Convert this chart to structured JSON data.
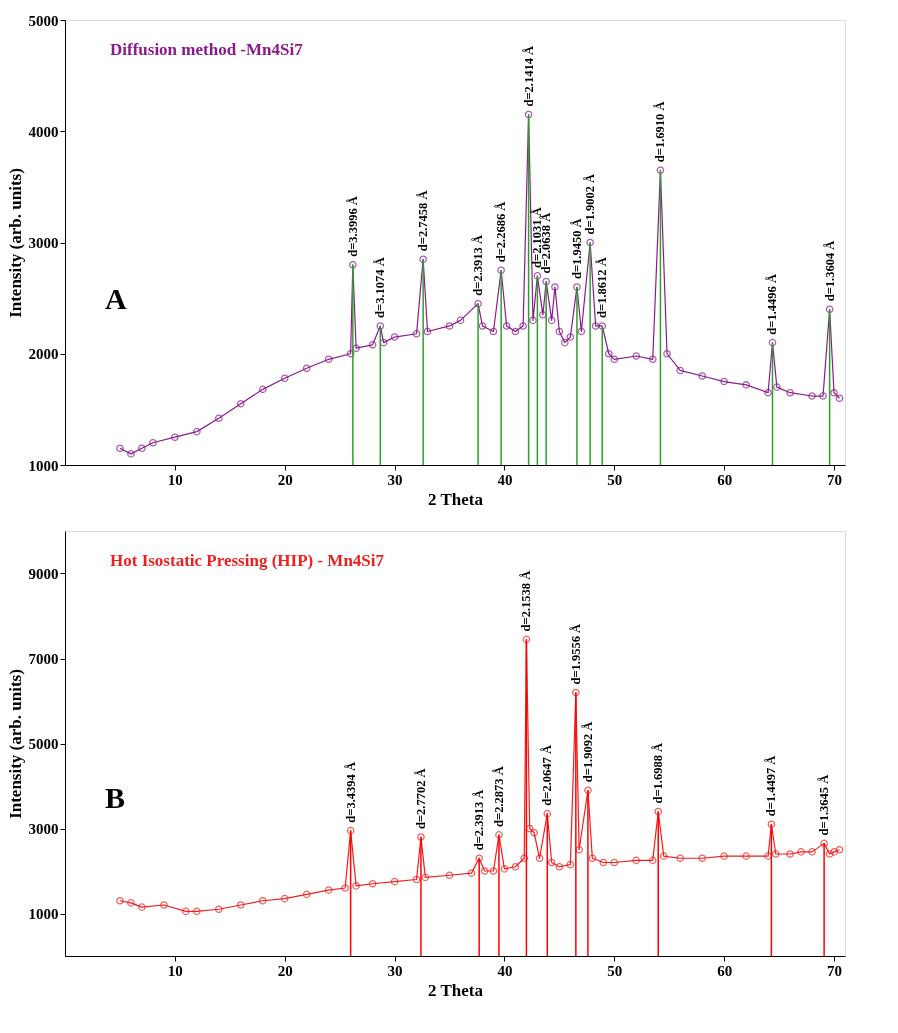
{
  "chart_data": [
    {
      "type": "line",
      "xlabel": "2 Theta",
      "ylabel": "Intensity (arb. units)",
      "xlim": [
        0,
        71
      ],
      "ylim": [
        1000,
        5000
      ],
      "xticks": [
        10,
        20,
        30,
        40,
        50,
        60,
        70
      ],
      "yticks": [
        1000,
        2000,
        3000,
        4000,
        5000
      ],
      "grid": false,
      "marker": "circle",
      "line_style": "solid",
      "annotations": [
        "A",
        {
          "text": "d=3.3996 Å",
          "x": 26.2,
          "y": 2800
        },
        {
          "text": "d=3.1074 Å",
          "x": 28.7,
          "y": 2250
        },
        {
          "text": "d=2.7458 Å",
          "x": 32.6,
          "y": 2850
        },
        {
          "text": "d=2.3913 Å",
          "x": 37.6,
          "y": 2450
        },
        {
          "text": "d=2.2686 Å",
          "x": 39.7,
          "y": 2750
        },
        {
          "text": "d=2.1414 Å",
          "x": 42.2,
          "y": 4150
        },
        {
          "text": "d=2.1031 Å",
          "x": 43.0,
          "y": 2700
        },
        {
          "text": "d=2.0638 Å",
          "x": 43.8,
          "y": 2650
        },
        {
          "text": "d=1.9450 Å",
          "x": 46.6,
          "y": 2600
        },
        {
          "text": "d=1.9002 Å",
          "x": 47.8,
          "y": 3000
        },
        {
          "text": "d=1.8612 Å",
          "x": 48.9,
          "y": 2250
        },
        {
          "text": "d=1.6910 Å",
          "x": 54.2,
          "y": 3650
        },
        {
          "text": "d=1.4496 Å",
          "x": 64.4,
          "y": 2100
        },
        {
          "text": "d=1.3604 Å",
          "x": 69.6,
          "y": 2400
        }
      ],
      "x": [
        5,
        6,
        7,
        8,
        10,
        12,
        14,
        16,
        18,
        20,
        22,
        24,
        26,
        26.2,
        26.5,
        28,
        28.7,
        29,
        30,
        32,
        32.6,
        33,
        35,
        36,
        37.6,
        38,
        39,
        39.7,
        40.2,
        41,
        41.7,
        42.2,
        42.6,
        43.0,
        43.5,
        43.8,
        44.3,
        44.6,
        45,
        45.5,
        46,
        46.6,
        47,
        47.8,
        48.3,
        48.9,
        49.5,
        50,
        52,
        53.5,
        54.2,
        54.8,
        56,
        58,
        60,
        62,
        64,
        64.4,
        64.8,
        66,
        68,
        69,
        69.6,
        70,
        70.5
      ],
      "series": [
        {
          "name": "Diffusion method -Mn4Si7",
          "color": "#8b1a8b",
          "values": [
            1150,
            1100,
            1150,
            1200,
            1250,
            1300,
            1420,
            1550,
            1680,
            1780,
            1870,
            1950,
            2000,
            2800,
            2050,
            2080,
            2250,
            2100,
            2150,
            2180,
            2850,
            2200,
            2250,
            2300,
            2450,
            2250,
            2200,
            2750,
            2250,
            2200,
            2250,
            4150,
            2300,
            2700,
            2350,
            2650,
            2300,
            2600,
            2200,
            2100,
            2150,
            2600,
            2200,
            3000,
            2250,
            2250,
            2000,
            1950,
            1980,
            1950,
            3650,
            2000,
            1850,
            1800,
            1750,
            1720,
            1650,
            2100,
            1700,
            1650,
            1620,
            1620,
            2400,
            1650,
            1600
          ]
        }
      ],
      "ref_lines": [
        {
          "axis": "x",
          "value": 26.2,
          "color": "#2ca02c"
        },
        {
          "axis": "x",
          "value": 28.7,
          "color": "#2ca02c"
        },
        {
          "axis": "x",
          "value": 32.6,
          "color": "#2ca02c"
        },
        {
          "axis": "x",
          "value": 37.6,
          "color": "#2ca02c"
        },
        {
          "axis": "x",
          "value": 39.7,
          "color": "#2ca02c"
        },
        {
          "axis": "x",
          "value": 42.2,
          "color": "#2ca02c"
        },
        {
          "axis": "x",
          "value": 43.0,
          "color": "#2ca02c"
        },
        {
          "axis": "x",
          "value": 43.8,
          "color": "#2ca02c"
        },
        {
          "axis": "x",
          "value": 46.6,
          "color": "#2ca02c"
        },
        {
          "axis": "x",
          "value": 47.8,
          "color": "#2ca02c"
        },
        {
          "axis": "x",
          "value": 48.9,
          "color": "#2ca02c"
        },
        {
          "axis": "x",
          "value": 54.2,
          "color": "#2ca02c"
        },
        {
          "axis": "x",
          "value": 64.4,
          "color": "#2ca02c"
        },
        {
          "axis": "x",
          "value": 69.6,
          "color": "#2ca02c"
        }
      ]
    },
    {
      "type": "line",
      "xlabel": "2 Theta",
      "ylabel": "Intensity (arb. units)",
      "xlim": [
        0,
        71
      ],
      "ylim": [
        0,
        10000
      ],
      "xticks": [
        10,
        20,
        30,
        40,
        50,
        60,
        70
      ],
      "yticks": [
        1000,
        3000,
        5000,
        7000,
        9000
      ],
      "grid": false,
      "marker": "circle",
      "line_style": "solid",
      "annotations": [
        "B",
        {
          "text": "d=3.4394 Å",
          "x": 26.0,
          "y": 2950
        },
        {
          "text": "d=2.7702 Å",
          "x": 32.4,
          "y": 2800
        },
        {
          "text": "d=2.3913 Å",
          "x": 37.7,
          "y": 2300
        },
        {
          "text": "d=2.2873 Å",
          "x": 39.5,
          "y": 2850
        },
        {
          "text": "d=2.1538 Å",
          "x": 42.0,
          "y": 7450
        },
        {
          "text": "d=2.0647 Å",
          "x": 43.9,
          "y": 3350
        },
        {
          "text": "d=1.9556 Å",
          "x": 46.5,
          "y": 6200
        },
        {
          "text": "d=1.9092 Å",
          "x": 47.6,
          "y": 3900
        },
        {
          "text": "d=1.6988 Å",
          "x": 54.0,
          "y": 3400
        },
        {
          "text": "d=1.4497 Å",
          "x": 64.3,
          "y": 3100
        },
        {
          "text": "d=1.3645 Å",
          "x": 69.1,
          "y": 2650
        }
      ],
      "x": [
        5,
        6,
        7,
        9,
        11,
        12,
        14,
        16,
        18,
        20,
        22,
        24,
        25.5,
        26.0,
        26.5,
        28,
        30,
        32,
        32.4,
        32.8,
        35,
        37,
        37.7,
        38.2,
        39,
        39.5,
        40,
        41,
        41.8,
        42.0,
        42.3,
        42.7,
        43.2,
        43.9,
        44.3,
        45,
        46,
        46.5,
        46.8,
        47.6,
        48,
        49,
        50,
        52,
        53.5,
        54.0,
        54.5,
        56,
        58,
        60,
        62,
        64,
        64.3,
        64.7,
        66,
        67,
        68,
        69.1,
        69.6,
        70,
        70.5
      ],
      "series": [
        {
          "name": "Hot Isostatic Pressing (HIP) - Mn4Si7",
          "color": "#f01e1e",
          "values": [
            1300,
            1250,
            1150,
            1200,
            1050,
            1050,
            1100,
            1200,
            1300,
            1350,
            1450,
            1550,
            1600,
            2950,
            1650,
            1700,
            1750,
            1800,
            2800,
            1850,
            1900,
            1950,
            2300,
            2000,
            2000,
            2850,
            2050,
            2100,
            2300,
            7450,
            3000,
            2900,
            2300,
            3350,
            2200,
            2100,
            2150,
            6200,
            2500,
            3900,
            2300,
            2200,
            2200,
            2250,
            2250,
            3400,
            2350,
            2300,
            2300,
            2350,
            2350,
            2350,
            3100,
            2400,
            2400,
            2450,
            2450,
            2650,
            2400,
            2450,
            2500
          ]
        }
      ],
      "ref_lines": [
        {
          "axis": "x",
          "value": 26.0,
          "color": "#ff0000"
        },
        {
          "axis": "x",
          "value": 32.4,
          "color": "#ff0000"
        },
        {
          "axis": "x",
          "value": 37.7,
          "color": "#ff0000"
        },
        {
          "axis": "x",
          "value": 39.5,
          "color": "#ff0000"
        },
        {
          "axis": "x",
          "value": 42.0,
          "color": "#ff0000"
        },
        {
          "axis": "x",
          "value": 43.9,
          "color": "#ff0000"
        },
        {
          "axis": "x",
          "value": 46.5,
          "color": "#ff0000"
        },
        {
          "axis": "x",
          "value": 47.6,
          "color": "#ff0000"
        },
        {
          "axis": "x",
          "value": 54.0,
          "color": "#ff0000"
        },
        {
          "axis": "x",
          "value": 64.3,
          "color": "#ff0000"
        },
        {
          "axis": "x",
          "value": 69.1,
          "color": "#ff0000"
        }
      ]
    }
  ]
}
